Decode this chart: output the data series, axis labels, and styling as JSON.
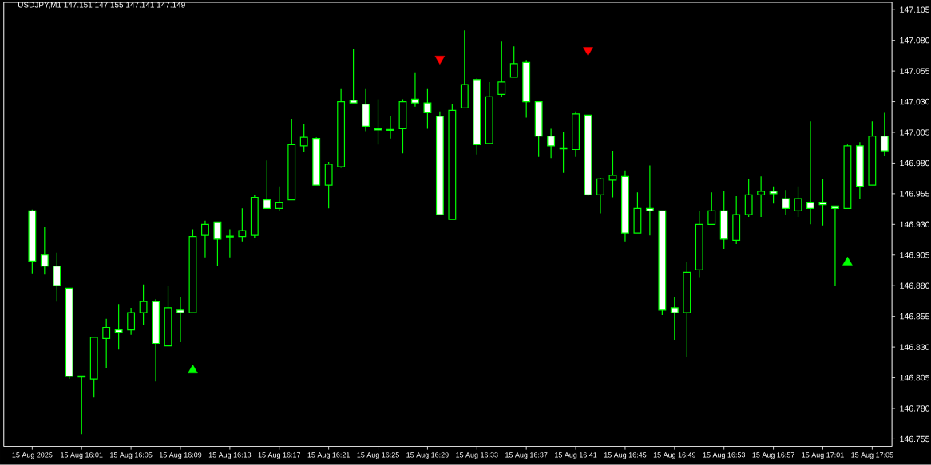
{
  "chart_data": {
    "type": "candlestick",
    "title": "USDJPY,M1  147.151 147.155 147.141 147.149",
    "color": "#00ff00",
    "categories": [
      "15 Aug 2025",
      null,
      null,
      null,
      "15 Aug 16:01",
      null,
      null,
      null,
      "15 Aug 16:05",
      null,
      null,
      null,
      "15 Aug 16:09",
      null,
      null,
      null,
      "15 Aug 16:13",
      null,
      null,
      null,
      "15 Aug 16:17",
      null,
      null,
      null,
      "15 Aug 16:21",
      null,
      null,
      null,
      "15 Aug 16:25",
      null,
      null,
      null,
      "15 Aug 16:29",
      null,
      null,
      null,
      "15 Aug 16:33",
      null,
      null,
      null,
      "15 Aug 16:37",
      null,
      null,
      null,
      "15 Aug 16:41",
      null,
      null,
      null,
      "15 Aug 16:45",
      null,
      null,
      null,
      "15 Aug 16:49",
      null,
      null,
      null,
      "15 Aug 16:53",
      null,
      null,
      null,
      "15 Aug 16:57",
      null,
      null,
      null,
      "15 Aug 17:01",
      null,
      null,
      null,
      "15 Aug 17:05",
      null
    ],
    "ohlc": [
      [
        146.941,
        146.942,
        146.89,
        146.9
      ],
      [
        146.905,
        146.928,
        146.889,
        146.896
      ],
      [
        146.896,
        146.907,
        146.867,
        146.88
      ],
      [
        146.878,
        146.878,
        146.804,
        146.806
      ],
      [
        146.806,
        146.806,
        146.759,
        146.806
      ],
      [
        146.804,
        146.838,
        146.789,
        146.838
      ],
      [
        146.837,
        146.853,
        146.813,
        146.846
      ],
      [
        146.844,
        146.865,
        146.828,
        146.842
      ],
      [
        146.844,
        146.862,
        146.84,
        146.858
      ],
      [
        146.858,
        146.881,
        146.848,
        146.867
      ],
      [
        146.867,
        146.869,
        146.802,
        146.833
      ],
      [
        146.831,
        146.88,
        146.831,
        146.862
      ],
      [
        146.86,
        146.871,
        146.834,
        146.858
      ],
      [
        146.858,
        146.926,
        146.858,
        146.92
      ],
      [
        146.921,
        146.933,
        146.903,
        146.93
      ],
      [
        146.932,
        146.932,
        146.896,
        146.918
      ],
      [
        146.92,
        146.926,
        146.903,
        146.92
      ],
      [
        146.92,
        146.943,
        146.916,
        146.925
      ],
      [
        146.921,
        146.954,
        146.919,
        146.952
      ],
      [
        146.95,
        146.982,
        146.943,
        146.943
      ],
      [
        146.943,
        146.961,
        146.941,
        146.948
      ],
      [
        146.95,
        147.016,
        146.95,
        146.995
      ],
      [
        146.994,
        147.012,
        146.989,
        147.001
      ],
      [
        147.0,
        147.001,
        146.962,
        146.962
      ],
      [
        146.962,
        146.981,
        146.943,
        146.979
      ],
      [
        146.977,
        147.041,
        146.976,
        147.03
      ],
      [
        147.031,
        147.073,
        147.029,
        147.029
      ],
      [
        147.028,
        147.041,
        147.006,
        147.01
      ],
      [
        147.008,
        147.032,
        146.995,
        147.007
      ],
      [
        147.007,
        147.018,
        147.0,
        147.007
      ],
      [
        147.008,
        147.032,
        146.988,
        147.03
      ],
      [
        147.032,
        147.054,
        147.026,
        147.029
      ],
      [
        147.029,
        147.041,
        147.008,
        147.021
      ],
      [
        147.018,
        147.022,
        146.938,
        146.938
      ],
      [
        146.934,
        147.028,
        146.934,
        147.023
      ],
      [
        147.025,
        147.088,
        147.025,
        147.044
      ],
      [
        147.048,
        147.049,
        146.987,
        146.995
      ],
      [
        146.996,
        147.046,
        146.996,
        147.034
      ],
      [
        147.036,
        147.079,
        147.034,
        147.046
      ],
      [
        147.05,
        147.075,
        147.05,
        147.061
      ],
      [
        147.062,
        147.064,
        147.017,
        147.03
      ],
      [
        147.03,
        147.03,
        146.985,
        147.002
      ],
      [
        147.002,
        147.008,
        146.984,
        146.994
      ],
      [
        146.992,
        147.005,
        146.972,
        146.992
      ],
      [
        146.991,
        147.022,
        146.985,
        147.02
      ],
      [
        147.019,
        147.019,
        146.953,
        146.954
      ],
      [
        146.954,
        146.968,
        146.939,
        146.967
      ],
      [
        146.966,
        146.99,
        146.952,
        146.97
      ],
      [
        146.969,
        146.974,
        146.916,
        146.923
      ],
      [
        146.923,
        146.956,
        146.923,
        146.943
      ],
      [
        146.943,
        146.978,
        146.921,
        146.941
      ],
      [
        146.941,
        146.941,
        146.856,
        146.86
      ],
      [
        146.862,
        146.871,
        146.836,
        146.858
      ],
      [
        146.858,
        146.899,
        146.822,
        146.891
      ],
      [
        146.893,
        146.941,
        146.887,
        146.93
      ],
      [
        146.93,
        146.956,
        146.93,
        146.941
      ],
      [
        146.941,
        146.957,
        146.91,
        146.918
      ],
      [
        146.917,
        146.953,
        146.914,
        146.938
      ],
      [
        146.938,
        146.967,
        146.936,
        146.954
      ],
      [
        146.954,
        146.969,
        146.936,
        146.957
      ],
      [
        146.957,
        146.961,
        146.947,
        146.955
      ],
      [
        146.951,
        146.958,
        146.938,
        146.943
      ],
      [
        146.941,
        146.961,
        146.936,
        146.951
      ],
      [
        146.948,
        147.014,
        146.93,
        146.943
      ],
      [
        146.948,
        146.967,
        146.929,
        146.946
      ],
      [
        146.945,
        146.945,
        146.88,
        146.943
      ],
      [
        146.943,
        146.995,
        146.943,
        146.994
      ],
      [
        146.994,
        146.997,
        146.951,
        146.961
      ],
      [
        146.962,
        147.014,
        146.962,
        147.002
      ],
      [
        147.002,
        147.021,
        146.986,
        146.99
      ]
    ],
    "series": [
      {
        "type": "scatter",
        "color": "#00ff00",
        "marker": "triangle",
        "values": [
          null,
          null,
          null,
          null,
          null,
          null,
          null,
          null,
          null,
          null,
          null,
          null,
          null,
          146.811,
          null,
          null,
          null,
          null,
          null,
          null,
          null,
          null,
          null,
          null,
          null,
          null,
          null,
          null,
          null,
          null,
          null,
          null,
          null,
          null,
          null,
          null,
          null,
          null,
          null,
          null,
          null,
          null,
          null,
          null,
          null,
          null,
          null,
          null,
          null,
          null,
          null,
          null,
          null,
          null,
          null,
          null,
          null,
          null,
          null,
          null,
          null,
          null,
          null,
          null,
          null,
          null,
          146.899,
          null,
          null,
          null
        ]
      },
      {
        "type": "scatter",
        "color": "#ff0000",
        "marker": "triangle",
        "values": [
          null,
          null,
          null,
          null,
          null,
          null,
          null,
          null,
          null,
          null,
          null,
          null,
          null,
          null,
          null,
          null,
          null,
          null,
          null,
          null,
          null,
          null,
          null,
          null,
          null,
          null,
          null,
          null,
          null,
          null,
          null,
          null,
          null,
          147.065,
          null,
          null,
          null,
          null,
          null,
          null,
          null,
          null,
          null,
          null,
          null,
          147.072,
          null,
          null,
          null,
          null,
          null,
          null,
          null,
          null,
          null,
          null,
          null,
          null,
          null,
          null,
          null,
          null,
          null,
          null,
          null,
          null,
          null,
          null,
          null,
          null
        ]
      }
    ],
    "ylim": [
      146.749,
      147.111
    ],
    "yticks": [
      146.755,
      {
        "value": 146.78,
        "label": "146.780"
      },
      146.805,
      {
        "value": 146.83,
        "label": "146.830"
      },
      146.855,
      {
        "value": 146.88,
        "label": "146.880"
      },
      146.905,
      {
        "value": 146.93,
        "label": "146.930"
      },
      146.955,
      {
        "value": 146.98,
        "label": "146.980"
      },
      147.005,
      {
        "value": 147.03,
        "label": "147.030"
      },
      147.055,
      {
        "value": 147.08,
        "label": "147.080"
      },
      147.105
    ],
    "grid": false
  }
}
